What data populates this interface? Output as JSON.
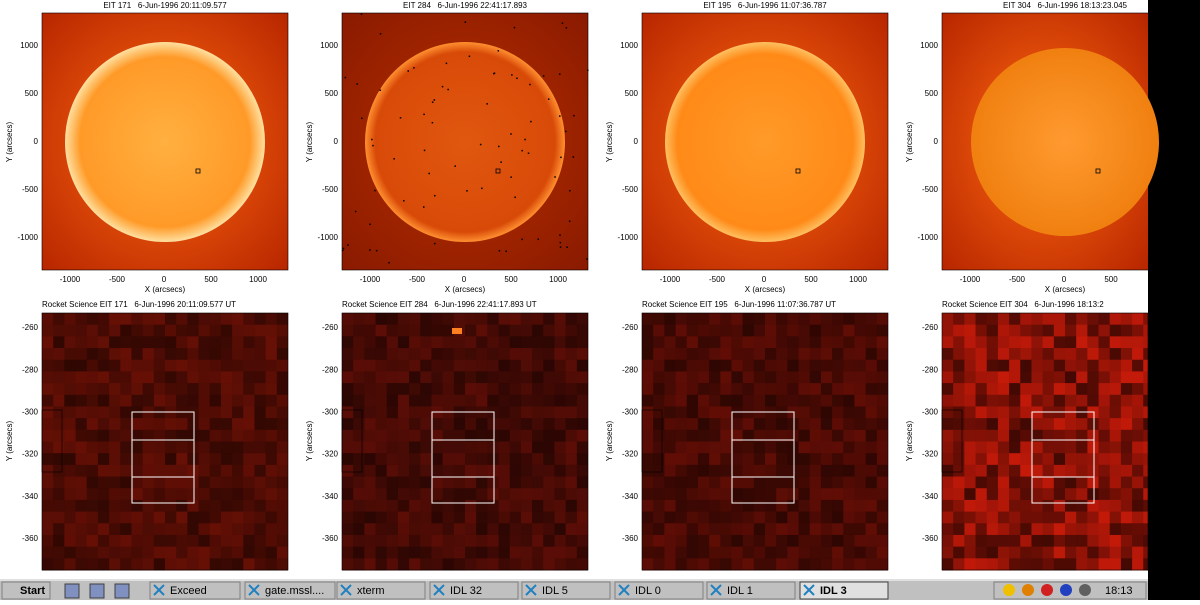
{
  "top_panels": [
    {
      "title": "EIT 171   6-Jun-1996 20:11:09.577"
    },
    {
      "title": "EIT 284   6-Jun-1996 22:41:17.893"
    },
    {
      "title": "EIT 195   6-Jun-1996 11:07:36.787"
    },
    {
      "title": "EIT 304   6-Jun-1996 18:13:23.045"
    }
  ],
  "top_yticks": [
    "1000",
    "500",
    "0",
    "-500",
    "-1000"
  ],
  "top_xticks": [
    "-1000",
    "-500",
    "0",
    "500",
    "1000"
  ],
  "top_ylabel": "Y (arcsecs)",
  "top_xlabel": "X (arcsecs)",
  "bottom_panels": [
    {
      "title": "Rocket Science EIT 171   6-Jun-1996 20:11:09.577 UT"
    },
    {
      "title": "Rocket Science EIT 284   6-Jun-1996 22:41:17.893 UT"
    },
    {
      "title": "Rocket Science EIT 195   6-Jun-1996 11:07:36.787 UT"
    },
    {
      "title": "Rocket Science EIT 304   6-Jun-1996 18:13:2"
    }
  ],
  "bottom_yticks": [
    "-260",
    "-280",
    "-300",
    "-320",
    "-340",
    "-360"
  ],
  "bottom_ylabel": "Y (arcsecs)",
  "taskbar": {
    "start": "Start",
    "items": [
      "Exceed",
      "gate.mssl....",
      "xterm",
      "IDL 32",
      "IDL 5",
      "IDL 0",
      "IDL 1",
      "IDL 3"
    ],
    "clock": "18:13"
  }
}
